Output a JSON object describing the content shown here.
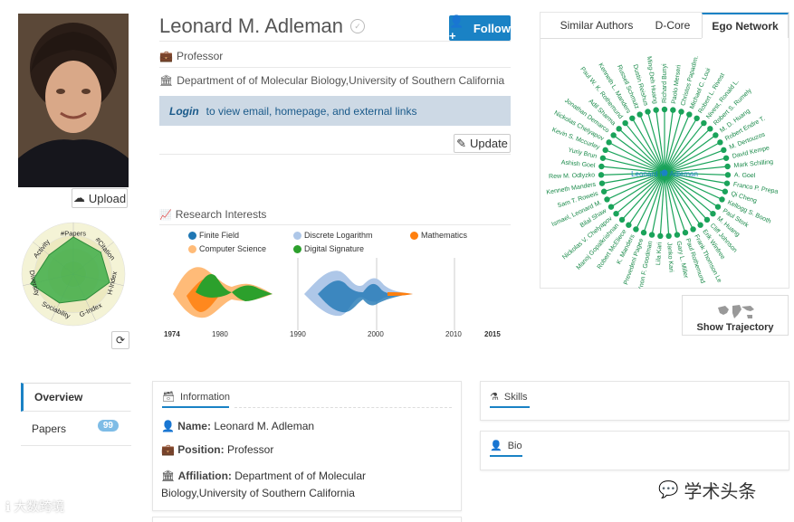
{
  "profile": {
    "name": "Leonard M. Adleman",
    "position": "Professor",
    "affiliation": "Department of of Molecular Biology,University of Southern California",
    "login_link": "Login",
    "login_text": "to view email, homepage, and external links",
    "follow_label": "Follow",
    "upload_label": "Upload",
    "update_label": "Update"
  },
  "radar": {
    "axes": [
      "#Papers",
      "#Citation",
      "H-Index",
      "G-Index",
      "Sociability",
      "Diversity",
      "Activity"
    ],
    "values": [
      0.72,
      0.68,
      0.72,
      0.55,
      0.62,
      0.85,
      0.6
    ]
  },
  "research": {
    "title": "Research Interests",
    "legend": [
      {
        "label": "Finite Field",
        "color": "#1f77b4"
      },
      {
        "label": "Discrete Logarithm",
        "color": "#aec7e8"
      },
      {
        "label": "Mathematics",
        "color": "#ff7f0e"
      },
      {
        "label": "Computer Science",
        "color": "#ffbb78"
      },
      {
        "label": "Digital Signature",
        "color": "#2ca02c"
      }
    ],
    "years": [
      "1974",
      "1980",
      "1990",
      "2000",
      "2010",
      "2015"
    ]
  },
  "right_tabs": [
    "Similar Authors",
    "D-Core",
    "Ego Network"
  ],
  "ego": {
    "center": "Leonard M. Adleman",
    "nodes": [
      "Richard Bunyi",
      "Paolo Merseri",
      "Christos Papadim.",
      "Michael C. Loui",
      "Robert L. Rivest",
      "Nivest, Ronald L.",
      "Robert S. Rumely",
      "M. D. Huang",
      "Robert Endre T.",
      "M. Dertouzos",
      "David Kempe",
      "Mark Schilling",
      "A. Goel",
      "Franco P. Prepa",
      "Qi Cheng",
      "Kellogg S. Booth",
      "Paul Stork",
      "M. Huang",
      "Cliff Johnson",
      "Erik Winfree",
      "Frank Thomson Le",
      "Paul Rothemund",
      "Gary L. Miller",
      "Janko Kari",
      "Lila Kari",
      "Ynon F. Goodman",
      "Prevedeni Pagee",
      "K. Manders",
      "Robert McEliece",
      "Manoj Gopalkrishnan",
      "Nickolas V. Chelyapov",
      "Bilal Shaw",
      "Ismael, Leonard M.",
      "Sam T. Roweis",
      "Kenneth Manders",
      "Rew M. Odlyzko",
      "Ashish Goel",
      "Yuriy Brun",
      "Kevin S. Mccurley",
      "Nickolas Chelyapov",
      "Jonathan Demarco",
      "Adil Sharma",
      "Paul W. K. Rothemund",
      "Kenneth L. Manders",
      "Russell Schmutz",
      "Dustin Reishus",
      "Ming-Deh Huang"
    ]
  },
  "show_trajectory": "Show Trajectory",
  "nav": {
    "overview": "Overview",
    "papers": "Papers",
    "papers_count": "99"
  },
  "information": {
    "title": "Information",
    "name_label": "Name:",
    "name": "Leonard M. Adleman",
    "position_label": "Position:",
    "position": "Professor",
    "affiliation_label": "Affiliation:",
    "affiliation_1": "Department of of Molecular",
    "affiliation_2": "Biology,University of Southern California"
  },
  "skills": {
    "title": "Skills"
  },
  "bio": {
    "title": "Bio"
  },
  "watermarks": {
    "left": "大数跨境",
    "right": "学术头条"
  },
  "colors": {
    "accent": "#1a82c5",
    "ego_green": "#1aa35a"
  }
}
